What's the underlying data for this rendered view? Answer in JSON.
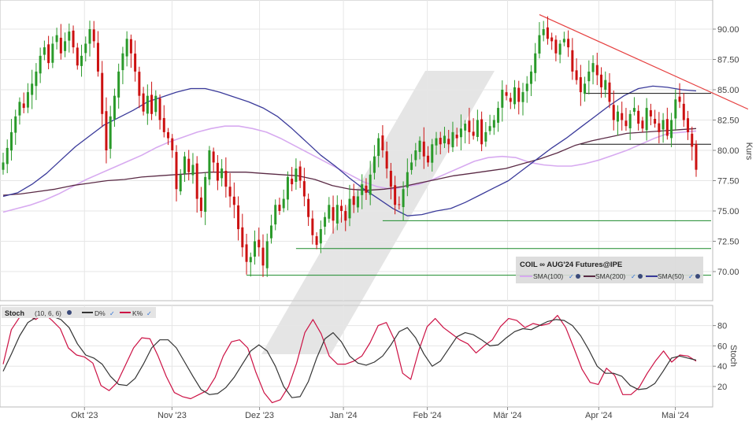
{
  "chart_data": [
    {
      "type": "candlestick",
      "title": "COIL ∞ AUG'24 Futures@IPE",
      "ylabel": "Kurs",
      "ylim": [
        67.5,
        92.5
      ],
      "y_ticks": [
        "90.00",
        "87.50",
        "85.00",
        "82.50",
        "80.00",
        "77.50",
        "75.00",
        "72.50",
        "70.00"
      ],
      "y_tick_values": [
        90,
        87.5,
        85,
        82.5,
        80,
        77.5,
        75,
        72.5,
        70
      ],
      "x_tick_labels": [
        "Okt '23",
        "Nov '23",
        "Dez '23",
        "Jan '24",
        "Feb '24",
        "Mär '24",
        "Apr '24",
        "Mai '24"
      ],
      "grid": true,
      "legend": [
        {
          "label": "SMA(100)",
          "color": "#d7aaf0"
        },
        {
          "label": "SMA(200)",
          "color": "#5a2a45"
        },
        {
          "label": "SMA(50)",
          "color": "#3a3a9a"
        }
      ],
      "candle_colors": {
        "up": "#2a9a2a",
        "down": "#cc1111"
      },
      "sma_colors": {
        "sma100": "#d7aaf0",
        "sma200": "#5a2a45",
        "sma50": "#3a3a9a"
      },
      "closes": [
        79,
        80.2,
        81.5,
        82.8,
        84,
        83.5,
        84.8,
        85.5,
        86.5,
        87.8,
        88.5,
        87.2,
        88.8,
        89.5,
        88,
        89,
        89.8,
        88.5,
        87,
        87.8,
        88.8,
        90,
        89,
        86.5,
        83,
        80,
        82.8,
        84.5,
        86.5,
        88,
        89.2,
        88,
        86.5,
        84.5,
        83.2,
        84.5,
        83,
        84.5,
        82.5,
        81.5,
        81,
        80,
        76.8,
        78,
        79.5,
        78.2,
        78.8,
        76,
        75,
        77.8,
        80,
        79,
        77.5,
        78.5,
        77,
        76.2,
        75.5,
        73.5,
        72,
        70.8,
        71.2,
        72.5,
        72,
        70.5,
        72.5,
        73.8,
        75.5,
        75,
        76,
        77.8,
        77.2,
        78.5,
        77.5,
        76.2,
        74.5,
        73,
        72.2,
        73.5,
        74.5,
        75.5,
        74.2,
        75.5,
        75,
        74.2,
        76,
        75.5,
        76.2,
        77.2,
        76.5,
        78,
        79.5,
        81,
        80,
        78.5,
        77,
        75.5,
        75.5,
        76.8,
        78.2,
        79,
        80,
        80.8,
        79.5,
        79,
        80.5,
        81,
        80.5,
        81.2,
        80.5,
        81.5,
        81,
        81.8,
        82.2,
        81.5,
        81.2,
        82.5,
        80.5,
        81.5,
        82,
        82.5,
        83.5,
        85,
        84.5,
        84,
        85.2,
        84,
        84.8,
        85.5,
        86.5,
        88,
        89.5,
        90,
        89.2,
        89,
        88,
        88.8,
        89.2,
        88.5,
        86.5,
        85.8,
        84.8,
        85.5,
        86.5,
        87.2,
        86.2,
        85.2,
        85.8,
        84,
        82.5,
        83.2,
        82.5,
        82,
        83,
        83.5,
        82.2,
        81.8,
        83.5,
        82.8,
        82.2,
        81.5,
        82.5,
        81.2,
        82.5,
        84.2,
        84,
        82.5,
        81.5,
        80.3,
        78.4
      ],
      "sma50": [
        76.2,
        76.5,
        77.2,
        78.1,
        79.2,
        80.3,
        81.2,
        82.1,
        82.7,
        83.3,
        84.0,
        84.4,
        84.8,
        85.1,
        85.1,
        84.8,
        84.4,
        84.0,
        83.5,
        82.8,
        81.8,
        80.7,
        79.6,
        78.7,
        77.7,
        76.8,
        76.0,
        75.2,
        74.6,
        74.7,
        75.0,
        75.2,
        75.7,
        76.3,
        76.9,
        77.5,
        78.4,
        79.3,
        80.2,
        81.0,
        81.9,
        82.8,
        83.7,
        84.5,
        85.1,
        85.3,
        85.2,
        85.0,
        84.9
      ],
      "sma100": [
        74.9,
        75.2,
        75.5,
        75.9,
        76.4,
        77.0,
        77.6,
        78.1,
        78.6,
        79.1,
        79.6,
        80.2,
        80.7,
        81.1,
        81.5,
        81.8,
        82.0,
        82.0,
        81.8,
        81.5,
        81.0,
        80.4,
        79.8,
        79.2,
        78.6,
        78.0,
        77.4,
        77.0,
        76.8,
        77.0,
        77.2,
        77.6,
        78.1,
        78.6,
        79.1,
        79.4,
        79.5,
        79.4,
        79.0,
        78.8,
        78.7,
        78.7,
        78.9,
        79.2,
        79.6,
        80.0,
        80.5,
        81.0,
        81.4,
        81.5,
        81.6
      ],
      "sma200": [
        76.3,
        76.4,
        76.6,
        76.8,
        77.1,
        77.3,
        77.5,
        77.6,
        77.8,
        77.9,
        78.0,
        78.1,
        78.2,
        78.2,
        78.2,
        78.1,
        78.0,
        77.9,
        77.6,
        77.1,
        76.8,
        76.7,
        76.8,
        77.0,
        77.3,
        77.6,
        77.9,
        78.1,
        78.3,
        78.5,
        78.9,
        79.3,
        79.8,
        80.4,
        80.8,
        81.1,
        81.4,
        81.5,
        81.6,
        81.7,
        81.8
      ],
      "trendline": {
        "from": [
          130,
          91.2
        ],
        "to": [
          176,
          83.4
        ],
        "color": "#e64040"
      },
      "support_lines": [
        {
          "from_index": 92,
          "value": 74.2
        },
        {
          "from_index": 71,
          "value": 71.9
        },
        {
          "from_index": 59,
          "value": 69.7
        }
      ],
      "resistance_lines": [
        {
          "from_index": 141,
          "value": 84.7
        },
        {
          "from_index": 140,
          "value": 80.5
        }
      ]
    },
    {
      "type": "line",
      "title": "Stoch",
      "ylabel": "Stoch",
      "ylim": [
        5,
        95
      ],
      "y_ticks": [
        "80",
        "60",
        "40",
        "20"
      ],
      "y_tick_values": [
        80,
        60,
        40,
        20
      ],
      "series": [
        {
          "name": "D%",
          "color": "#333333",
          "values": [
            35,
            52,
            70,
            83,
            88,
            89,
            89,
            86,
            78,
            62,
            51,
            48,
            42,
            30,
            22,
            21,
            28,
            42,
            58,
            66,
            66,
            58,
            44,
            30,
            17,
            12,
            13,
            19,
            29,
            42,
            55,
            61,
            55,
            40,
            20,
            9,
            10,
            25,
            48,
            67,
            73,
            64,
            50,
            43,
            41,
            44,
            50,
            61,
            74,
            78,
            68,
            52,
            40,
            45,
            57,
            69,
            73,
            71,
            66,
            60,
            61,
            68,
            74,
            77,
            76,
            80,
            84,
            86,
            85,
            80,
            70,
            56,
            40,
            33,
            33,
            30,
            21,
            17,
            18,
            23,
            35,
            48,
            50,
            48,
            46
          ]
        },
        {
          "name": "K%",
          "color": "#cc1144",
          "values": [
            42,
            76,
            88,
            90,
            86,
            92,
            85,
            77,
            58,
            51,
            49,
            43,
            21,
            16,
            24,
            41,
            58,
            68,
            67,
            50,
            30,
            14,
            10,
            8,
            12,
            16,
            29,
            50,
            64,
            66,
            58,
            34,
            14,
            4,
            7,
            20,
            43,
            73,
            86,
            72,
            50,
            42,
            42,
            45,
            50,
            63,
            80,
            83,
            66,
            33,
            27,
            56,
            79,
            87,
            78,
            72,
            66,
            62,
            53,
            60,
            66,
            79,
            87,
            85,
            78,
            82,
            80,
            82,
            90,
            78,
            58,
            37,
            24,
            22,
            38,
            31,
            12,
            12,
            19,
            33,
            45,
            55,
            44,
            51,
            50,
            45
          ]
        }
      ],
      "params": "(10, 6, 6)",
      "legend": [
        {
          "label": "D%",
          "color": "#333333"
        },
        {
          "label": "K%",
          "color": "#cc1144"
        }
      ],
      "x_tick_labels": [
        "Okt '23",
        "Nov '23",
        "Dez '23",
        "Jan '24",
        "Feb '24",
        "Mär '24",
        "Apr '24",
        "Mai '24"
      ]
    }
  ]
}
